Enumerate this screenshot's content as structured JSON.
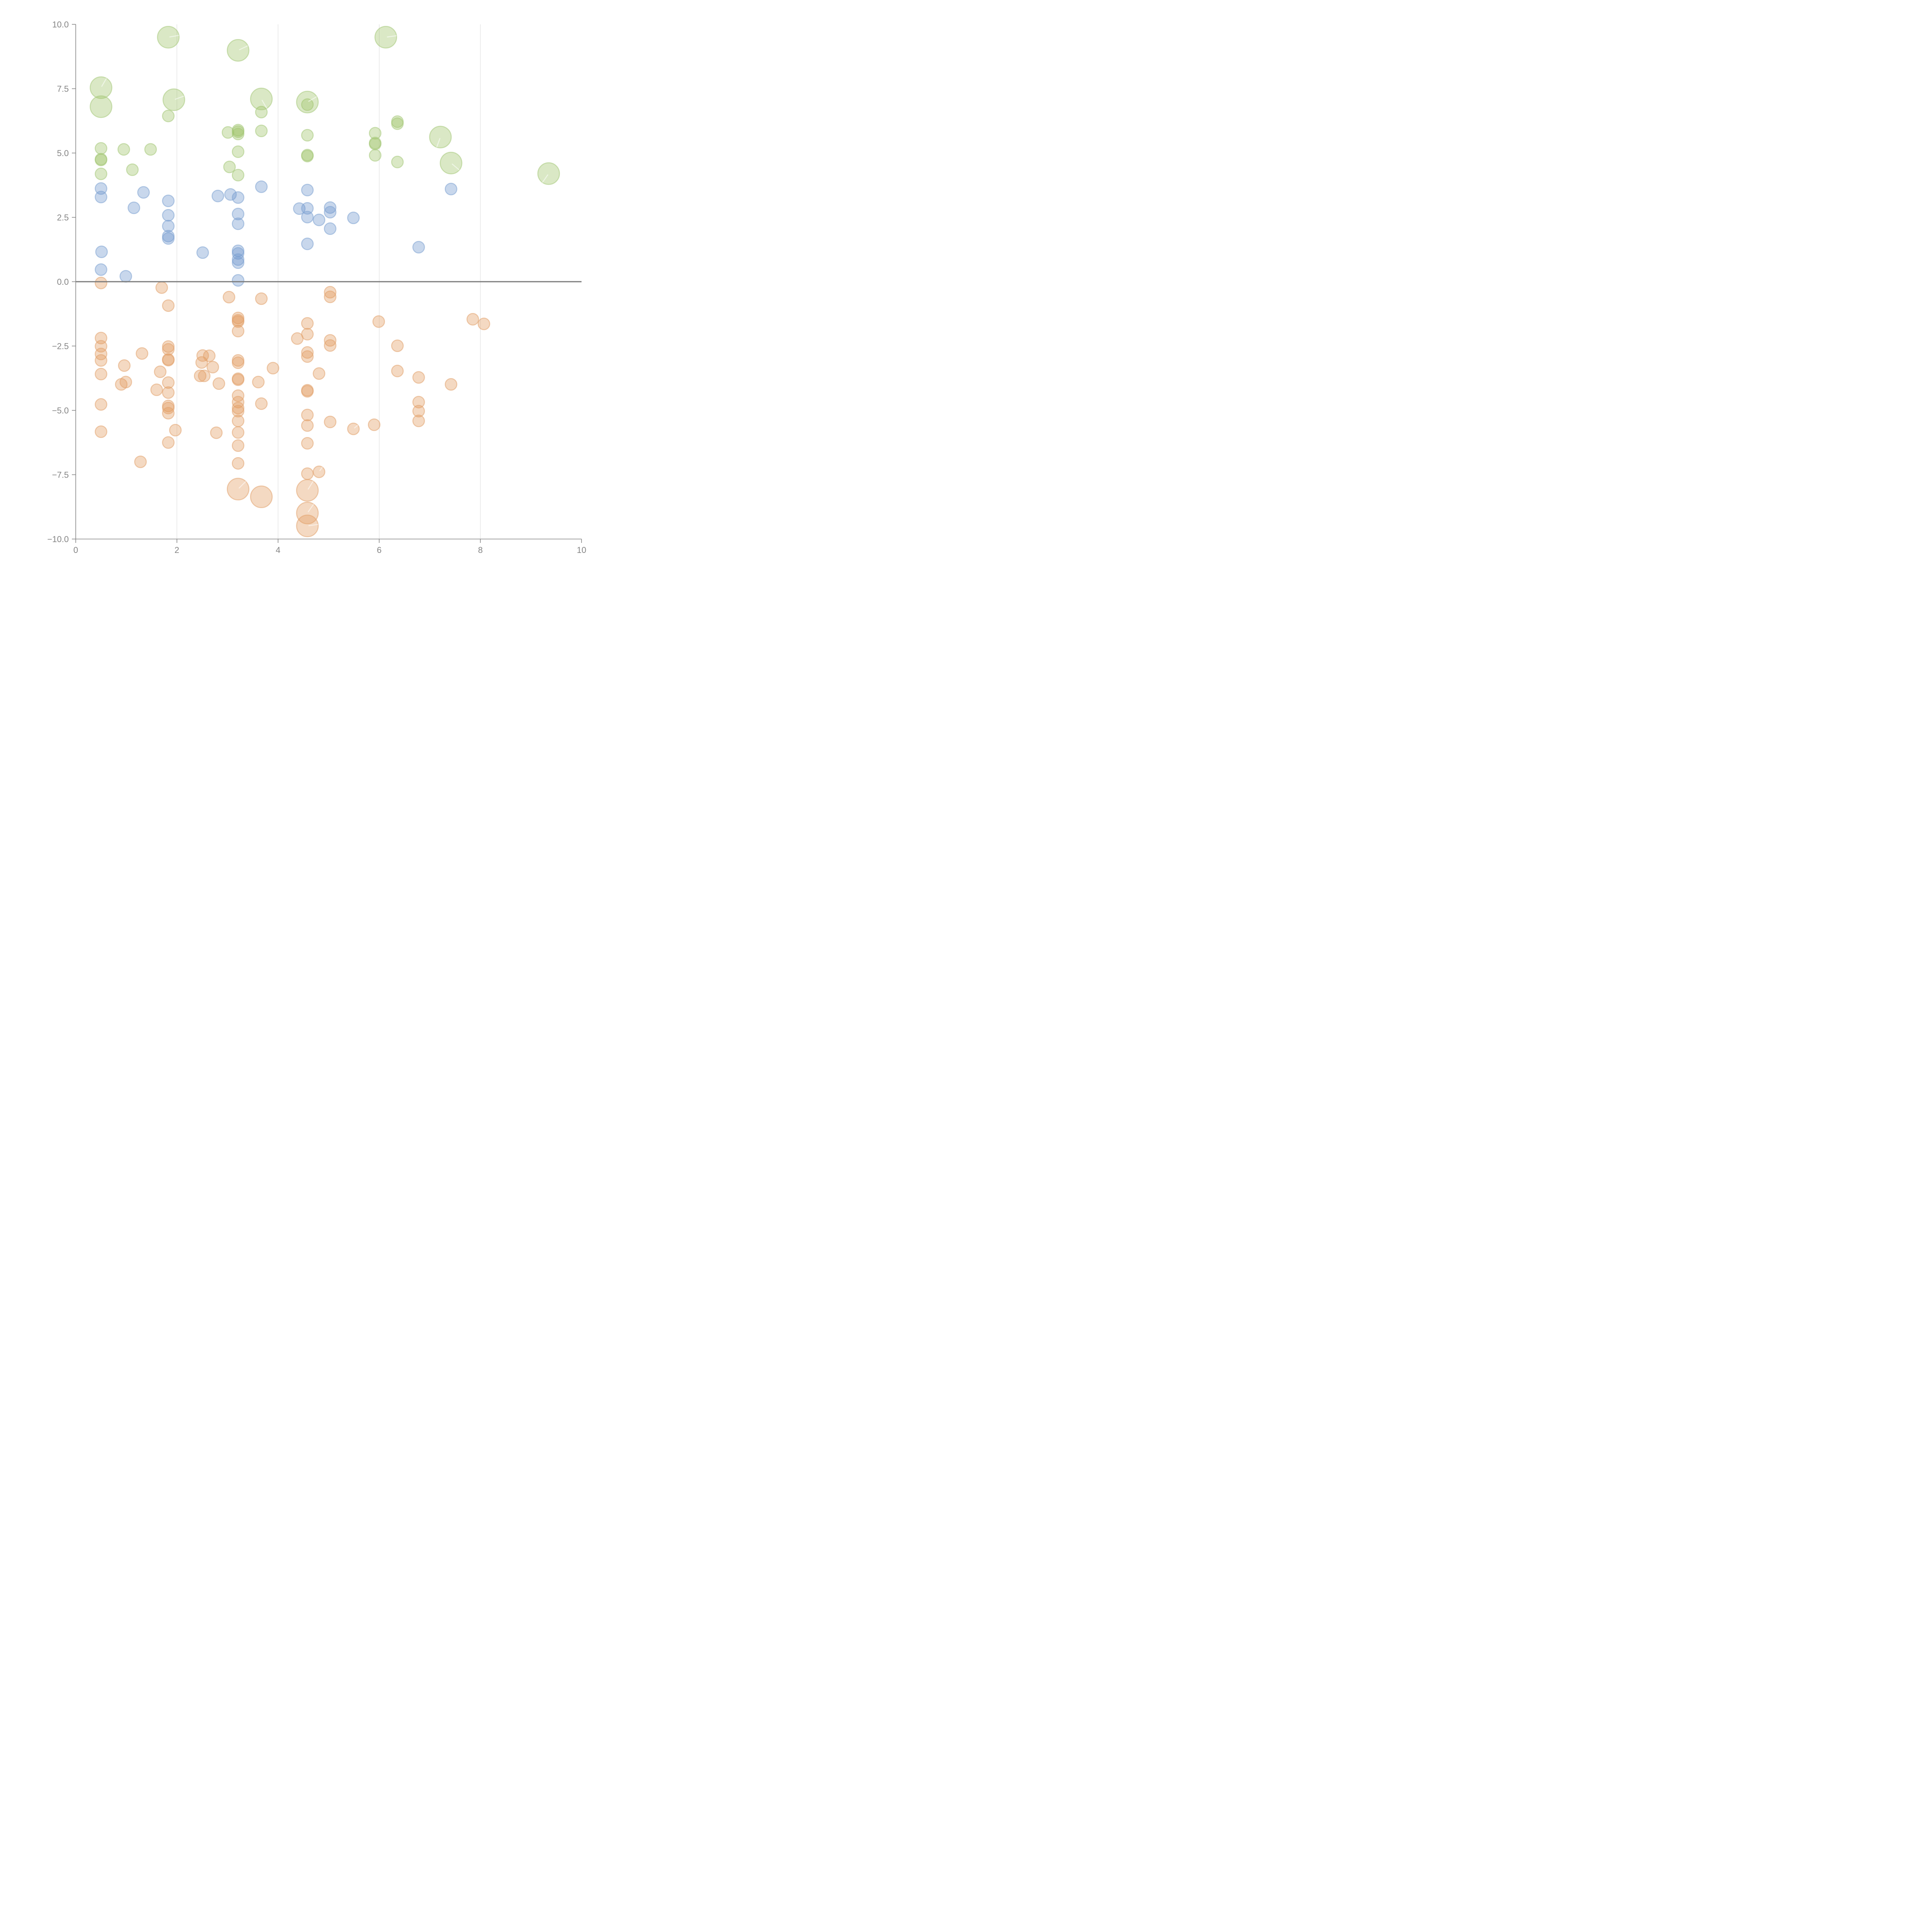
{
  "chart_data": {
    "type": "scatter",
    "title": "",
    "xlabel": "",
    "ylabel": "",
    "xlim": [
      0,
      10
    ],
    "ylim": [
      -10,
      10
    ],
    "x_ticks": [
      0,
      2,
      4,
      6,
      8,
      10
    ],
    "x_tick_labels": [
      "0",
      "2",
      "4",
      "6",
      "8",
      "10"
    ],
    "y_ticks": [
      10,
      7.5,
      5,
      2.5,
      0,
      -2.5,
      -5,
      -7.5,
      -10
    ],
    "y_tick_labels": [
      "10.0",
      "7.5",
      "5.0",
      "2.5",
      "0.0",
      "−2.5",
      "−5.0",
      "−7.5",
      "−10.0"
    ],
    "grid": {
      "x": true,
      "y": false
    },
    "zero_line": true,
    "legend": null,
    "series": [
      {
        "name": "green",
        "color": "#9dc266",
        "stroke": "#a6c97a",
        "points": [
          [
            0.5,
            5.18,
            "s"
          ],
          [
            0.5,
            4.76,
            "s"
          ],
          [
            0.5,
            4.73,
            "s"
          ],
          [
            0.5,
            4.19,
            "s"
          ],
          [
            0.95,
            5.14,
            "s"
          ],
          [
            1.12,
            4.35,
            "s"
          ],
          [
            1.48,
            5.14,
            "s"
          ],
          [
            1.83,
            6.44,
            "s"
          ],
          [
            3.01,
            5.8,
            "s"
          ],
          [
            3.04,
            4.46,
            "s"
          ],
          [
            3.21,
            5.89,
            "s"
          ],
          [
            3.21,
            5.83,
            "s"
          ],
          [
            3.21,
            5.74,
            "s"
          ],
          [
            3.21,
            5.05,
            "s"
          ],
          [
            3.21,
            4.14,
            "s"
          ],
          [
            3.67,
            6.59,
            "s"
          ],
          [
            3.67,
            5.86,
            "s"
          ],
          [
            4.58,
            6.88,
            "s"
          ],
          [
            4.58,
            5.69,
            "s"
          ],
          [
            4.58,
            4.92,
            "s"
          ],
          [
            4.58,
            4.88,
            "s"
          ],
          [
            5.92,
            5.77,
            "s"
          ],
          [
            5.92,
            5.39,
            "s"
          ],
          [
            5.92,
            5.35,
            "s"
          ],
          [
            5.92,
            4.91,
            "s"
          ],
          [
            6.36,
            6.22,
            "s"
          ],
          [
            6.36,
            6.14,
            "s"
          ],
          [
            6.36,
            4.65,
            "s"
          ],
          [
            0.5,
            7.54,
            "l",
            60
          ],
          [
            0.5,
            6.8,
            "l"
          ],
          [
            1.83,
            9.5,
            "l",
            10
          ],
          [
            1.94,
            7.07,
            "l",
            20
          ],
          [
            3.21,
            8.99,
            "l",
            25
          ],
          [
            3.67,
            7.1,
            "l",
            -60
          ],
          [
            4.58,
            6.98,
            "l",
            30
          ],
          [
            6.13,
            9.5,
            "l",
            8
          ],
          [
            7.21,
            5.62,
            "l",
            -110
          ],
          [
            7.42,
            4.61,
            "l",
            -40
          ],
          [
            9.35,
            4.2,
            "l",
            -125
          ]
        ]
      },
      {
        "name": "blue",
        "color": "#6f97cc",
        "stroke": "#7ea2d2",
        "points": [
          [
            0.5,
            3.62,
            "s"
          ],
          [
            0.5,
            3.29,
            "s"
          ],
          [
            0.51,
            1.16,
            "s"
          ],
          [
            0.5,
            0.47,
            "s"
          ],
          [
            0.99,
            0.21,
            "s"
          ],
          [
            1.15,
            2.87,
            "s"
          ],
          [
            1.34,
            3.47,
            "s"
          ],
          [
            1.83,
            3.14,
            "s"
          ],
          [
            1.83,
            2.58,
            "s"
          ],
          [
            1.83,
            2.16,
            "s"
          ],
          [
            1.83,
            1.77,
            "s"
          ],
          [
            1.83,
            1.68,
            "s"
          ],
          [
            2.51,
            1.13,
            "s"
          ],
          [
            2.81,
            3.33,
            "s"
          ],
          [
            3.06,
            3.39,
            "s"
          ],
          [
            3.21,
            3.27,
            "s"
          ],
          [
            3.21,
            2.63,
            "s"
          ],
          [
            3.21,
            2.25,
            "s"
          ],
          [
            3.21,
            1.2,
            "s"
          ],
          [
            3.21,
            1.1,
            "s"
          ],
          [
            3.21,
            0.86,
            "s"
          ],
          [
            3.21,
            0.74,
            "s"
          ],
          [
            3.21,
            0.05,
            "s"
          ],
          [
            3.67,
            3.69,
            "s"
          ],
          [
            4.42,
            2.84,
            "s"
          ],
          [
            4.58,
            3.56,
            "s"
          ],
          [
            4.58,
            2.85,
            "s"
          ],
          [
            4.58,
            2.51,
            "s"
          ],
          [
            4.58,
            1.47,
            "s"
          ],
          [
            4.81,
            2.4,
            "s"
          ],
          [
            5.03,
            2.88,
            "s"
          ],
          [
            5.03,
            2.7,
            "s"
          ],
          [
            5.03,
            2.06,
            "s"
          ],
          [
            5.49,
            2.48,
            "s"
          ],
          [
            6.78,
            1.34,
            "s"
          ],
          [
            7.42,
            3.6,
            "s"
          ]
        ]
      },
      {
        "name": "orange",
        "color": "#e39a5e",
        "stroke": "#e2a26e",
        "points": [
          [
            0.5,
            -0.05,
            "s"
          ],
          [
            0.5,
            -2.19,
            "s"
          ],
          [
            0.5,
            -2.51,
            "s"
          ],
          [
            0.5,
            -2.81,
            "s"
          ],
          [
            0.5,
            -3.06,
            "s"
          ],
          [
            0.5,
            -3.59,
            "s"
          ],
          [
            0.5,
            -4.77,
            "s"
          ],
          [
            0.5,
            -5.83,
            "s"
          ],
          [
            0.9,
            -3.99,
            "s"
          ],
          [
            0.96,
            -3.26,
            "s"
          ],
          [
            0.99,
            -3.9,
            "s"
          ],
          [
            1.28,
            -7.0,
            "s"
          ],
          [
            1.31,
            -2.79,
            "s"
          ],
          [
            1.6,
            -4.2,
            "s"
          ],
          [
            1.67,
            -3.5,
            "s"
          ],
          [
            1.7,
            -0.23,
            "s"
          ],
          [
            1.83,
            -0.93,
            "s"
          ],
          [
            1.83,
            -2.52,
            "s"
          ],
          [
            1.83,
            -2.63,
            "s"
          ],
          [
            1.83,
            -3.02,
            "s"
          ],
          [
            1.83,
            -3.05,
            "s"
          ],
          [
            1.83,
            -3.92,
            "s"
          ],
          [
            1.83,
            -4.31,
            "s"
          ],
          [
            1.83,
            -4.83,
            "s"
          ],
          [
            1.83,
            -4.91,
            "s"
          ],
          [
            1.83,
            -5.11,
            "s"
          ],
          [
            1.83,
            -6.25,
            "s"
          ],
          [
            1.97,
            -5.77,
            "s"
          ],
          [
            2.46,
            -3.66,
            "s"
          ],
          [
            2.49,
            -3.14,
            "s"
          ],
          [
            2.51,
            -2.87,
            "s"
          ],
          [
            2.54,
            -3.66,
            "s"
          ],
          [
            2.64,
            -2.88,
            "s"
          ],
          [
            2.71,
            -3.32,
            "s"
          ],
          [
            2.78,
            -5.87,
            "s"
          ],
          [
            2.83,
            -3.96,
            "s"
          ],
          [
            3.03,
            -0.6,
            "s"
          ],
          [
            3.21,
            -1.41,
            "s"
          ],
          [
            3.21,
            -1.5,
            "s"
          ],
          [
            3.21,
            -1.55,
            "s"
          ],
          [
            3.21,
            -1.92,
            "s"
          ],
          [
            3.21,
            -3.06,
            "s"
          ],
          [
            3.21,
            -3.15,
            "s"
          ],
          [
            3.21,
            -3.77,
            "s"
          ],
          [
            3.21,
            -3.81,
            "s"
          ],
          [
            3.21,
            -4.43,
            "s"
          ],
          [
            3.21,
            -4.68,
            "s"
          ],
          [
            3.21,
            -4.91,
            "s"
          ],
          [
            3.21,
            -5.03,
            "s"
          ],
          [
            3.21,
            -5.41,
            "s"
          ],
          [
            3.21,
            -5.86,
            "s"
          ],
          [
            3.21,
            -6.37,
            "s"
          ],
          [
            3.21,
            -7.06,
            "s"
          ],
          [
            3.61,
            -3.9,
            "s"
          ],
          [
            3.67,
            -0.66,
            "s"
          ],
          [
            3.67,
            -4.74,
            "s"
          ],
          [
            3.9,
            -3.36,
            "s"
          ],
          [
            4.38,
            -2.21,
            "s"
          ],
          [
            4.58,
            -1.62,
            "s"
          ],
          [
            4.58,
            -2.04,
            "s"
          ],
          [
            4.58,
            -2.75,
            "s"
          ],
          [
            4.58,
            -2.91,
            "s"
          ],
          [
            4.58,
            -4.22,
            "s"
          ],
          [
            4.58,
            -4.26,
            "s"
          ],
          [
            4.58,
            -5.18,
            "s"
          ],
          [
            4.58,
            -5.59,
            "s"
          ],
          [
            4.58,
            -6.28,
            "s"
          ],
          [
            4.58,
            -7.46,
            "s"
          ],
          [
            4.81,
            -3.57,
            "s"
          ],
          [
            4.81,
            -7.39,
            "s",
            55
          ],
          [
            5.03,
            -0.41,
            "s"
          ],
          [
            5.03,
            -0.59,
            "s"
          ],
          [
            5.03,
            -2.28,
            "s"
          ],
          [
            5.03,
            -2.48,
            "s"
          ],
          [
            5.03,
            -5.45,
            "s"
          ],
          [
            5.49,
            -5.72,
            "s",
            40
          ],
          [
            5.9,
            -5.56,
            "s"
          ],
          [
            5.99,
            -1.55,
            "s"
          ],
          [
            6.36,
            -2.49,
            "s"
          ],
          [
            6.36,
            -3.47,
            "s"
          ],
          [
            6.78,
            -3.72,
            "s"
          ],
          [
            6.78,
            -4.68,
            "s"
          ],
          [
            6.78,
            -5.03,
            "s"
          ],
          [
            6.78,
            -5.41,
            "s"
          ],
          [
            7.42,
            -3.99,
            "s"
          ],
          [
            7.85,
            -1.46,
            "s"
          ],
          [
            8.07,
            -1.64,
            "s"
          ],
          [
            3.21,
            -8.06,
            "l",
            45
          ],
          [
            3.67,
            -8.36,
            "l"
          ],
          [
            4.58,
            -8.11,
            "l",
            58
          ],
          [
            4.58,
            -8.99,
            "l",
            55
          ],
          [
            4.58,
            -9.49,
            "l",
            8
          ]
        ]
      }
    ]
  }
}
